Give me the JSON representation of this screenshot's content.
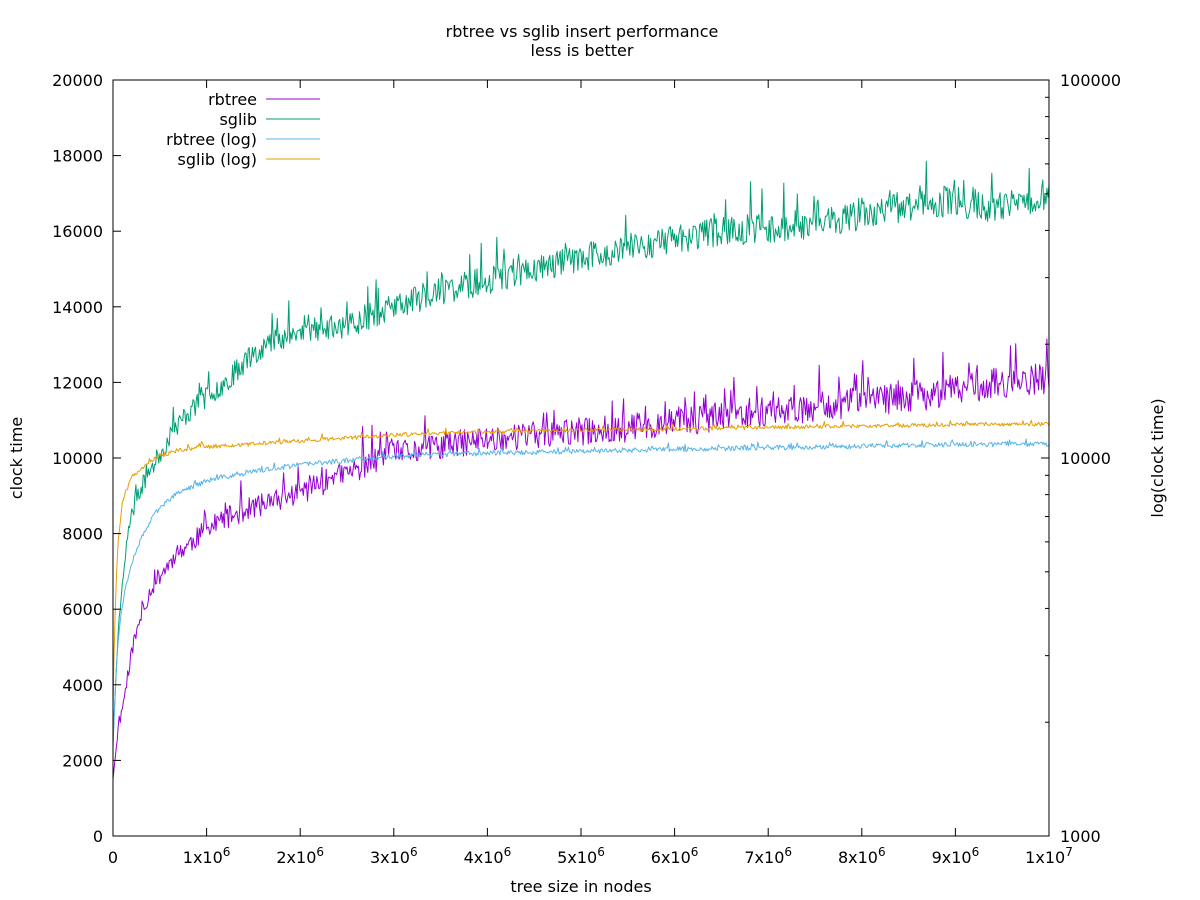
{
  "chart_data": {
    "type": "line",
    "title": "rbtree vs sglib insert performance",
    "subtitle": "less is better",
    "xlabel": "tree size in nodes",
    "ylabel": "clock time",
    "y2label": "log(clock time)",
    "xlim": [
      0,
      10000000
    ],
    "ylim": [
      0,
      20000
    ],
    "y2lim": [
      1000,
      100000
    ],
    "y2_scale": "log",
    "grid": false,
    "legend_position": "top-left",
    "x_ticks": [
      {
        "value": 0,
        "mant": "0",
        "exp": ""
      },
      {
        "value": 1000000,
        "mant": "1x10",
        "exp": "6"
      },
      {
        "value": 2000000,
        "mant": "2x10",
        "exp": "6"
      },
      {
        "value": 3000000,
        "mant": "3x10",
        "exp": "6"
      },
      {
        "value": 4000000,
        "mant": "4x10",
        "exp": "6"
      },
      {
        "value": 5000000,
        "mant": "5x10",
        "exp": "6"
      },
      {
        "value": 6000000,
        "mant": "6x10",
        "exp": "6"
      },
      {
        "value": 7000000,
        "mant": "7x10",
        "exp": "6"
      },
      {
        "value": 8000000,
        "mant": "8x10",
        "exp": "6"
      },
      {
        "value": 9000000,
        "mant": "9x10",
        "exp": "6"
      },
      {
        "value": 10000000,
        "mant": "1x10",
        "exp": "7"
      }
    ],
    "y_ticks": [
      "0",
      "2000",
      "4000",
      "6000",
      "8000",
      "10000",
      "12000",
      "14000",
      "16000",
      "18000",
      "20000"
    ],
    "y2_ticks": [
      "1000",
      "10000",
      "100000"
    ],
    "series": [
      {
        "name": "rbtree",
        "axis": "y",
        "color": "#9400d3",
        "x": [
          0,
          50000,
          100000,
          150000,
          200000,
          300000,
          400000,
          500000,
          600000,
          700000,
          800000,
          1000000,
          1200000,
          1500000,
          1800000,
          2000000,
          2500000,
          3000000,
          3500000,
          4000000,
          4500000,
          5000000,
          5500000,
          6000000,
          6500000,
          7000000,
          7500000,
          8000000,
          8500000,
          9000000,
          9500000,
          10000000
        ],
        "values": [
          1500,
          2700,
          3400,
          4100,
          4900,
          5800,
          6500,
          6900,
          7200,
          7500,
          7700,
          8100,
          8400,
          8700,
          8900,
          9100,
          9600,
          10100,
          10300,
          10500,
          10600,
          10700,
          10800,
          10950,
          11100,
          11250,
          11350,
          11500,
          11600,
          11800,
          12000,
          12100
        ],
        "noise": 0.035,
        "spike": 0.08,
        "seed": 11
      },
      {
        "name": "sglib",
        "axis": "y",
        "color": "#009e73",
        "x": [
          0,
          50000,
          100000,
          150000,
          200000,
          300000,
          400000,
          500000,
          600000,
          700000,
          800000,
          1000000,
          1200000,
          1500000,
          1800000,
          2000000,
          2500000,
          3000000,
          3500000,
          4000000,
          4500000,
          5000000,
          5500000,
          6000000,
          6500000,
          7000000,
          7500000,
          8000000,
          8500000,
          9000000,
          9500000,
          10000000
        ],
        "values": [
          2500,
          5200,
          6800,
          7800,
          8500,
          9200,
          9700,
          10100,
          10500,
          10900,
          11200,
          11600,
          12000,
          12800,
          13200,
          13300,
          13500,
          14000,
          14400,
          14700,
          15000,
          15300,
          15500,
          15800,
          16000,
          16100,
          16200,
          16400,
          16700,
          16800,
          16600,
          17000
        ],
        "noise": 0.025,
        "spike": 0.06,
        "seed": 23
      },
      {
        "name": "rbtree (log)",
        "axis": "y2",
        "color": "#56b4e9",
        "x": [
          0,
          50000,
          100000,
          200000,
          300000,
          400000,
          500000,
          700000,
          1000000,
          1500000,
          2000000,
          2500000,
          3000000,
          4000000,
          5000000,
          6000000,
          7000000,
          8000000,
          9000000,
          10000000
        ],
        "values": [
          1700,
          3200,
          4100,
          5300,
          6100,
          6800,
          7400,
          8100,
          8700,
          9200,
          9600,
          9850,
          10100,
          10300,
          10400,
          10550,
          10650,
          10750,
          10850,
          10900
        ],
        "noise": 0.015,
        "spike": 0.03,
        "seed": 37
      },
      {
        "name": "sglib (log)",
        "axis": "y2",
        "color": "#e69f00",
        "x": [
          0,
          50000,
          100000,
          200000,
          300000,
          400000,
          500000,
          700000,
          1000000,
          1500000,
          2000000,
          2500000,
          3000000,
          4000000,
          5000000,
          6000000,
          7000000,
          8000000,
          9000000,
          10000000
        ],
        "values": [
          2200,
          5800,
          7600,
          8900,
          9400,
          9800,
          10100,
          10500,
          10700,
          10900,
          11100,
          11300,
          11500,
          11700,
          11850,
          11950,
          12050,
          12150,
          12250,
          12300
        ],
        "noise": 0.012,
        "spike": 0.03,
        "seed": 51
      }
    ]
  }
}
